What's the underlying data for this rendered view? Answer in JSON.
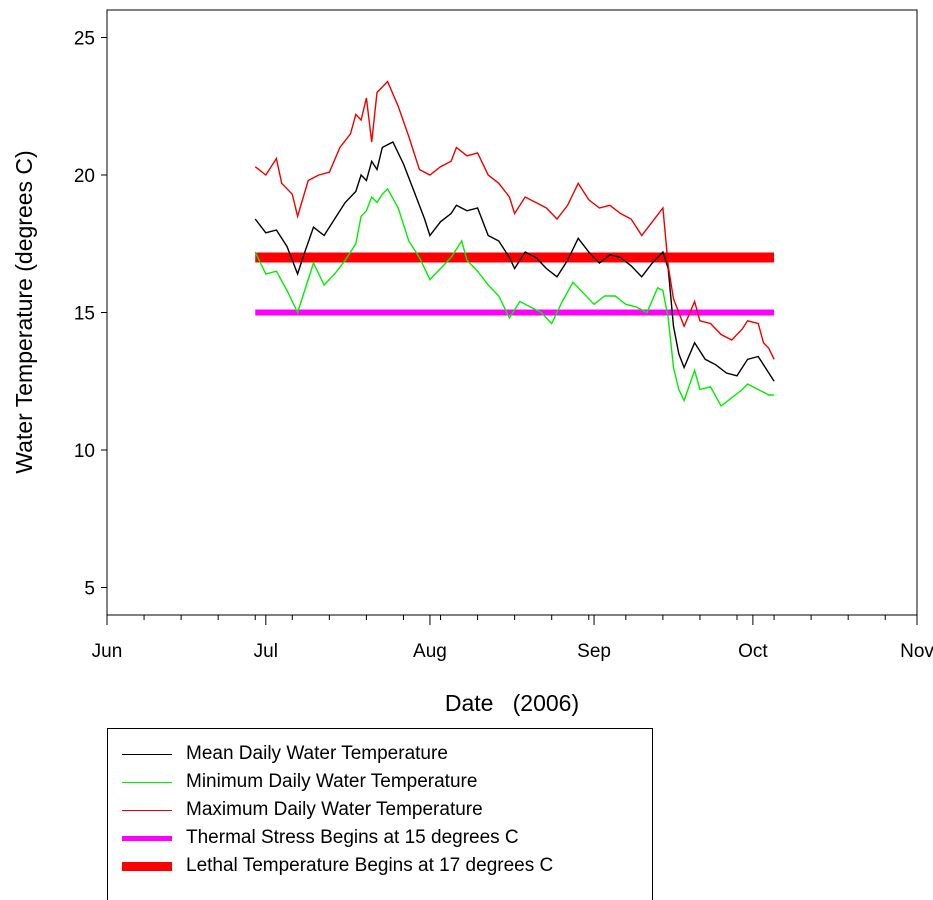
{
  "chart_data": {
    "type": "line",
    "title": "",
    "xlabel": "Date   (2006)",
    "ylabel": "Water Temperature (degrees C)",
    "ylim": [
      4,
      26
    ],
    "yticks": [
      5,
      10,
      15,
      20,
      25
    ],
    "x_tick_labels": [
      "Jun",
      "Jul",
      "Aug",
      "Sep",
      "Oct",
      "Nov"
    ],
    "x_tick_dates": [
      "2006-06-01",
      "2006-07-01",
      "2006-08-01",
      "2006-09-01",
      "2006-10-01",
      "2006-11-01"
    ],
    "xlim": [
      "2006-06-01",
      "2006-11-01"
    ],
    "grid": false,
    "legend_position": "below",
    "series": [
      {
        "name": "Mean Daily Water Temperature",
        "color": "#000000",
        "points": [
          [
            "2006-06-29",
            18.4
          ],
          [
            "2006-07-01",
            17.9
          ],
          [
            "2006-07-03",
            18.0
          ],
          [
            "2006-07-05",
            17.4
          ],
          [
            "2006-07-07",
            16.4
          ],
          [
            "2006-07-08",
            17.0
          ],
          [
            "2006-07-10",
            18.1
          ],
          [
            "2006-07-12",
            17.8
          ],
          [
            "2006-07-14",
            18.4
          ],
          [
            "2006-07-16",
            19.0
          ],
          [
            "2006-07-18",
            19.4
          ],
          [
            "2006-07-19",
            20.0
          ],
          [
            "2006-07-20",
            19.8
          ],
          [
            "2006-07-21",
            20.5
          ],
          [
            "2006-07-22",
            20.2
          ],
          [
            "2006-07-23",
            21.0
          ],
          [
            "2006-07-25",
            21.2
          ],
          [
            "2006-07-27",
            20.4
          ],
          [
            "2006-07-29",
            19.4
          ],
          [
            "2006-07-31",
            18.4
          ],
          [
            "2006-08-01",
            17.8
          ],
          [
            "2006-08-03",
            18.3
          ],
          [
            "2006-08-05",
            18.6
          ],
          [
            "2006-08-06",
            18.9
          ],
          [
            "2006-08-08",
            18.7
          ],
          [
            "2006-08-10",
            18.8
          ],
          [
            "2006-08-12",
            17.8
          ],
          [
            "2006-08-14",
            17.6
          ],
          [
            "2006-08-16",
            17.0
          ],
          [
            "2006-08-17",
            16.6
          ],
          [
            "2006-08-19",
            17.2
          ],
          [
            "2006-08-21",
            17.0
          ],
          [
            "2006-08-23",
            16.6
          ],
          [
            "2006-08-25",
            16.3
          ],
          [
            "2006-08-27",
            16.9
          ],
          [
            "2006-08-29",
            17.7
          ],
          [
            "2006-08-31",
            17.2
          ],
          [
            "2006-09-02",
            16.8
          ],
          [
            "2006-09-04",
            17.1
          ],
          [
            "2006-09-06",
            17.0
          ],
          [
            "2006-09-08",
            16.7
          ],
          [
            "2006-09-10",
            16.3
          ],
          [
            "2006-09-12",
            16.8
          ],
          [
            "2006-09-14",
            17.2
          ],
          [
            "2006-09-15",
            16.6
          ],
          [
            "2006-09-16",
            14.5
          ],
          [
            "2006-09-17",
            13.5
          ],
          [
            "2006-09-18",
            13.0
          ],
          [
            "2006-09-20",
            13.9
          ],
          [
            "2006-09-22",
            13.3
          ],
          [
            "2006-09-24",
            13.1
          ],
          [
            "2006-09-26",
            12.8
          ],
          [
            "2006-09-28",
            12.7
          ],
          [
            "2006-09-30",
            13.3
          ],
          [
            "2006-10-02",
            13.4
          ],
          [
            "2006-10-04",
            12.8
          ],
          [
            "2006-10-05",
            12.5
          ]
        ]
      },
      {
        "name": "Minimum Daily Water Temperature",
        "color": "#00ee00",
        "points": [
          [
            "2006-06-29",
            17.2
          ],
          [
            "2006-07-01",
            16.4
          ],
          [
            "2006-07-03",
            16.5
          ],
          [
            "2006-07-05",
            15.8
          ],
          [
            "2006-07-07",
            15.0
          ],
          [
            "2006-07-08",
            15.6
          ],
          [
            "2006-07-10",
            16.8
          ],
          [
            "2006-07-12",
            16.0
          ],
          [
            "2006-07-14",
            16.4
          ],
          [
            "2006-07-16",
            16.9
          ],
          [
            "2006-07-18",
            17.5
          ],
          [
            "2006-07-19",
            18.5
          ],
          [
            "2006-07-20",
            18.7
          ],
          [
            "2006-07-21",
            19.2
          ],
          [
            "2006-07-22",
            19.0
          ],
          [
            "2006-07-23",
            19.3
          ],
          [
            "2006-07-24",
            19.5
          ],
          [
            "2006-07-26",
            18.8
          ],
          [
            "2006-07-28",
            17.6
          ],
          [
            "2006-07-30",
            17.0
          ],
          [
            "2006-08-01",
            16.2
          ],
          [
            "2006-08-03",
            16.6
          ],
          [
            "2006-08-05",
            17.0
          ],
          [
            "2006-08-07",
            17.6
          ],
          [
            "2006-08-08",
            16.9
          ],
          [
            "2006-08-10",
            16.5
          ],
          [
            "2006-08-12",
            16.0
          ],
          [
            "2006-08-14",
            15.6
          ],
          [
            "2006-08-16",
            14.8
          ],
          [
            "2006-08-18",
            15.4
          ],
          [
            "2006-08-20",
            15.2
          ],
          [
            "2006-08-22",
            15.0
          ],
          [
            "2006-08-24",
            14.6
          ],
          [
            "2006-08-26",
            15.4
          ],
          [
            "2006-08-28",
            16.1
          ],
          [
            "2006-08-30",
            15.7
          ],
          [
            "2006-09-01",
            15.3
          ],
          [
            "2006-09-03",
            15.6
          ],
          [
            "2006-09-05",
            15.6
          ],
          [
            "2006-09-07",
            15.3
          ],
          [
            "2006-09-09",
            15.2
          ],
          [
            "2006-09-11",
            15.0
          ],
          [
            "2006-09-13",
            15.9
          ],
          [
            "2006-09-14",
            15.8
          ],
          [
            "2006-09-15",
            14.8
          ],
          [
            "2006-09-16",
            13.0
          ],
          [
            "2006-09-17",
            12.2
          ],
          [
            "2006-09-18",
            11.8
          ],
          [
            "2006-09-20",
            12.9
          ],
          [
            "2006-09-21",
            12.2
          ],
          [
            "2006-09-23",
            12.3
          ],
          [
            "2006-09-25",
            11.6
          ],
          [
            "2006-09-27",
            11.9
          ],
          [
            "2006-09-29",
            12.2
          ],
          [
            "2006-09-30",
            12.4
          ],
          [
            "2006-10-02",
            12.2
          ],
          [
            "2006-10-04",
            12.0
          ],
          [
            "2006-10-05",
            12.0
          ]
        ]
      },
      {
        "name": "Maximum Daily Water Temperature",
        "color": "#ee0000",
        "points": [
          [
            "2006-06-29",
            20.3
          ],
          [
            "2006-07-01",
            20.0
          ],
          [
            "2006-07-03",
            20.6
          ],
          [
            "2006-07-04",
            19.7
          ],
          [
            "2006-07-06",
            19.3
          ],
          [
            "2006-07-07",
            18.5
          ],
          [
            "2006-07-09",
            19.8
          ],
          [
            "2006-07-11",
            20.0
          ],
          [
            "2006-07-13",
            20.1
          ],
          [
            "2006-07-15",
            21.0
          ],
          [
            "2006-07-17",
            21.5
          ],
          [
            "2006-07-18",
            22.2
          ],
          [
            "2006-07-19",
            22.0
          ],
          [
            "2006-07-20",
            22.8
          ],
          [
            "2006-07-21",
            21.2
          ],
          [
            "2006-07-22",
            23.0
          ],
          [
            "2006-07-24",
            23.4
          ],
          [
            "2006-07-26",
            22.5
          ],
          [
            "2006-07-28",
            21.4
          ],
          [
            "2006-07-30",
            20.2
          ],
          [
            "2006-08-01",
            20.0
          ],
          [
            "2006-08-03",
            20.3
          ],
          [
            "2006-08-05",
            20.5
          ],
          [
            "2006-08-06",
            21.0
          ],
          [
            "2006-08-08",
            20.7
          ],
          [
            "2006-08-10",
            20.8
          ],
          [
            "2006-08-12",
            20.0
          ],
          [
            "2006-08-14",
            19.7
          ],
          [
            "2006-08-16",
            19.2
          ],
          [
            "2006-08-17",
            18.6
          ],
          [
            "2006-08-19",
            19.2
          ],
          [
            "2006-08-21",
            19.0
          ],
          [
            "2006-08-23",
            18.8
          ],
          [
            "2006-08-25",
            18.4
          ],
          [
            "2006-08-27",
            18.9
          ],
          [
            "2006-08-29",
            19.7
          ],
          [
            "2006-08-31",
            19.1
          ],
          [
            "2006-09-02",
            18.8
          ],
          [
            "2006-09-04",
            18.9
          ],
          [
            "2006-09-06",
            18.6
          ],
          [
            "2006-09-08",
            18.4
          ],
          [
            "2006-09-10",
            17.8
          ],
          [
            "2006-09-12",
            18.3
          ],
          [
            "2006-09-14",
            18.8
          ],
          [
            "2006-09-15",
            16.7
          ],
          [
            "2006-09-16",
            15.5
          ],
          [
            "2006-09-18",
            14.5
          ],
          [
            "2006-09-20",
            15.4
          ],
          [
            "2006-09-21",
            14.7
          ],
          [
            "2006-09-23",
            14.6
          ],
          [
            "2006-09-25",
            14.2
          ],
          [
            "2006-09-27",
            14.0
          ],
          [
            "2006-09-29",
            14.4
          ],
          [
            "2006-09-30",
            14.7
          ],
          [
            "2006-10-02",
            14.6
          ],
          [
            "2006-10-03",
            13.9
          ],
          [
            "2006-10-04",
            13.7
          ],
          [
            "2006-10-05",
            13.3
          ]
        ]
      }
    ],
    "thresholds": [
      {
        "name": "Thermal Stress Begins at 15 degrees C",
        "value": 15,
        "from": "2006-06-29",
        "to": "2006-10-05",
        "color": "#ff00ff"
      },
      {
        "name": "Lethal Temperature Begins at 17 degrees C",
        "value": 17,
        "from": "2006-06-29",
        "to": "2006-10-05",
        "color": "#ff0000"
      }
    ]
  },
  "legend": {
    "items": [
      {
        "label": "Mean Daily Water Temperature",
        "color": "#000000"
      },
      {
        "label": "Minimum Daily Water Temperature",
        "color": "#00ee00"
      },
      {
        "label": "Maximum Daily Water Temperature",
        "color": "#ee0000"
      },
      {
        "label": "Thermal Stress Begins at 15 degrees C",
        "color": "#ff00ff"
      },
      {
        "label": "Lethal Temperature Begins at 17 degrees C",
        "color": "#ff0000"
      }
    ]
  }
}
